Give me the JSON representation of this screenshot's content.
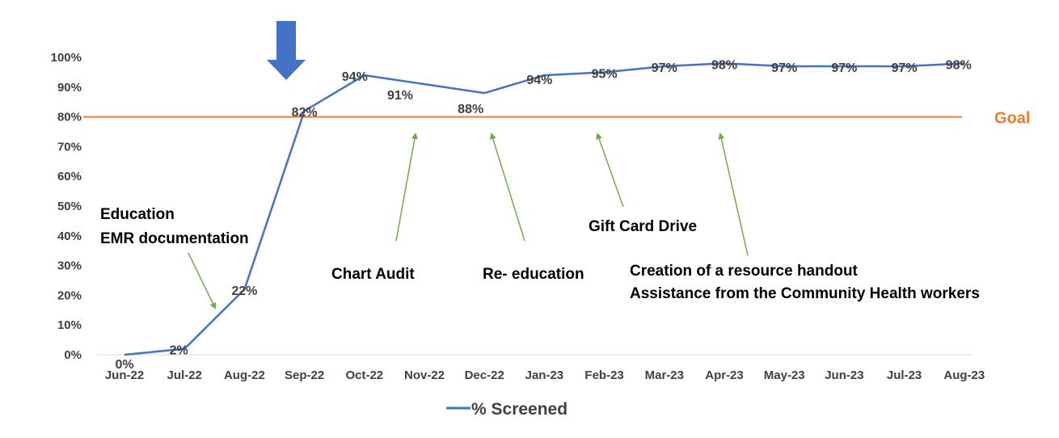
{
  "chart_data": {
    "type": "line",
    "title": "",
    "xlabel": "",
    "ylabel": "",
    "categories": [
      "Jun-22",
      "Jul-22",
      "Aug-22",
      "Sep-22",
      "Oct-22",
      "Nov-22",
      "Dec-22",
      "Jan-23",
      "Feb-23",
      "Mar-23",
      "Apr-23",
      "May-23",
      "Jun-23",
      "Jul-23",
      "Aug-23"
    ],
    "series": [
      {
        "name": "% Screened",
        "values": [
          0,
          2,
          22,
          82,
          94,
          91,
          88,
          94,
          95,
          97,
          98,
          97,
          97,
          97,
          98
        ],
        "labels": [
          "0%",
          "2%",
          "22%",
          "82%",
          "94%",
          "91%",
          "88%",
          "94%",
          "95%",
          "97%",
          "98%",
          "97%",
          "97%",
          "97%",
          "98%"
        ]
      }
    ],
    "goal": {
      "value": 80,
      "label": "Goal"
    },
    "ylim": [
      0,
      100
    ],
    "yticks": [
      0,
      10,
      20,
      30,
      40,
      50,
      60,
      70,
      80,
      90,
      100
    ],
    "ytick_labels": [
      "0%",
      "10%",
      "20%",
      "30%",
      "40%",
      "50%",
      "60%",
      "70%",
      "80%",
      "90%",
      "100%"
    ],
    "grid": false,
    "legend_position": "bottom",
    "colors": {
      "series": "#4472C4",
      "goal": "#ED7D31",
      "arrow": "#70AD47",
      "marker": "#4472C4"
    },
    "annotations": [
      {
        "lines": [
          "Education",
          "EMR documentation"
        ]
      },
      {
        "lines": [
          "Chart Audit"
        ]
      },
      {
        "lines": [
          "Re- education"
        ]
      },
      {
        "lines": [
          "Gift Card Drive"
        ]
      },
      {
        "lines": [
          "Creation of a resource handout",
          "Assistance from the Community Health workers"
        ]
      }
    ]
  }
}
